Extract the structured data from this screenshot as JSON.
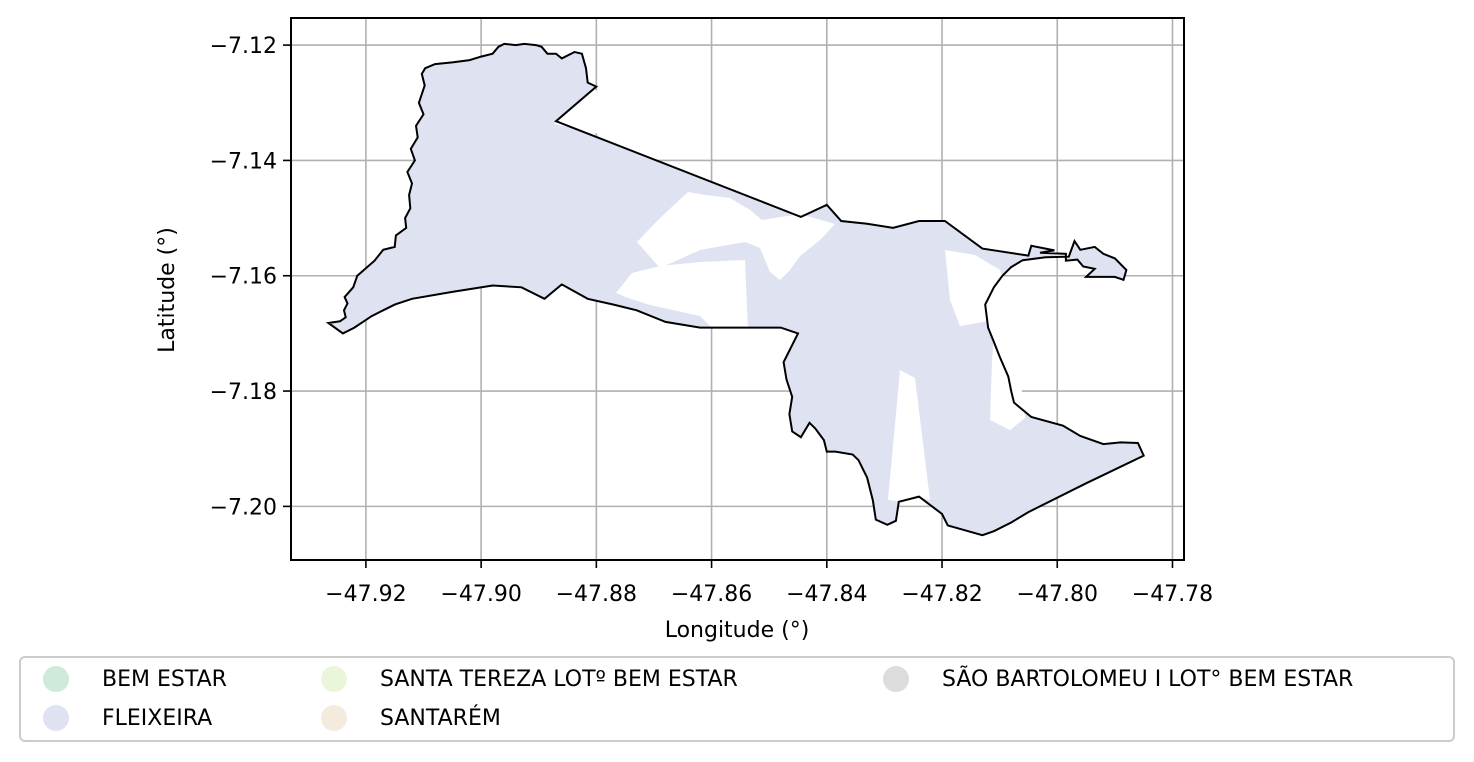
{
  "chart_data": {
    "type": "map",
    "title": "",
    "xlabel": "Longitude (°)",
    "ylabel": "Latitude (°)",
    "xlim": [
      -47.933,
      -47.778
    ],
    "ylim": [
      -7.2093,
      -7.1153
    ],
    "xticks": [
      -47.92,
      -47.9,
      -47.88,
      -47.86,
      -47.84,
      -47.82,
      -47.8,
      -47.78
    ],
    "xtick_labels": [
      "−47.92",
      "−47.90",
      "−47.88",
      "−47.86",
      "−47.84",
      "−47.82",
      "−47.80",
      "−47.78"
    ],
    "yticks": [
      -7.12,
      -7.14,
      -7.16,
      -7.18,
      -7.2
    ],
    "ytick_labels": [
      "−7.12",
      "−7.14",
      "−7.16",
      "−7.18",
      "−7.20"
    ],
    "grid": true,
    "legend_position": "bottom",
    "legend": [
      {
        "label": "BEM ESTAR",
        "color": "#cdeadb"
      },
      {
        "label": "FLEIXEIRA",
        "color": "#dfe3f1"
      },
      {
        "label": "SANTA TEREZA LOTº BEM ESTAR",
        "color": "#eaf6d9"
      },
      {
        "label": "SANTARÉM",
        "color": "#f5ebdc"
      },
      {
        "label": "SÃO BARTOLOMEU I LOT° BEM ESTAR",
        "color": "#dcdcdc"
      }
    ],
    "fill_color": "#dfe3f1",
    "boundary_color": "#000000",
    "boundary": [
      [
        -47.9265,
        -7.1682
      ],
      [
        -47.9245,
        -7.1679
      ],
      [
        -47.9235,
        -7.1672
      ],
      [
        -47.9238,
        -7.166
      ],
      [
        -47.9232,
        -7.1648
      ],
      [
        -47.9237,
        -7.1637
      ],
      [
        -47.9222,
        -7.162
      ],
      [
        -47.9215,
        -7.16
      ],
      [
        -47.92,
        -7.1587
      ],
      [
        -47.9185,
        -7.1574
      ],
      [
        -47.917,
        -7.1555
      ],
      [
        -47.915,
        -7.155
      ],
      [
        -47.9148,
        -7.153
      ],
      [
        -47.913,
        -7.1517
      ],
      [
        -47.9132,
        -7.15
      ],
      [
        -47.9123,
        -7.1483
      ],
      [
        -47.9125,
        -7.146
      ],
      [
        -47.912,
        -7.144
      ],
      [
        -47.9128,
        -7.142
      ],
      [
        -47.9115,
        -7.14
      ],
      [
        -47.9122,
        -7.138
      ],
      [
        -47.911,
        -7.136
      ],
      [
        -47.9113,
        -7.134
      ],
      [
        -47.91,
        -7.132
      ],
      [
        -47.9108,
        -7.13
      ],
      [
        -47.9098,
        -7.127
      ],
      [
        -47.9103,
        -7.125
      ],
      [
        -47.9097,
        -7.124
      ],
      [
        -47.908,
        -7.1233
      ],
      [
        -47.905,
        -7.123
      ],
      [
        -47.902,
        -7.1226
      ],
      [
        -47.9,
        -7.122
      ],
      [
        -47.898,
        -7.1215
      ],
      [
        -47.897,
        -7.1203
      ],
      [
        -47.896,
        -7.1198
      ],
      [
        -47.894,
        -7.12
      ],
      [
        -47.8925,
        -7.1198
      ],
      [
        -47.8905,
        -7.12
      ],
      [
        -47.8895,
        -7.1203
      ],
      [
        -47.8885,
        -7.1215
      ],
      [
        -47.887,
        -7.1215
      ],
      [
        -47.886,
        -7.1223
      ],
      [
        -47.8838,
        -7.1212
      ],
      [
        -47.8825,
        -7.1215
      ],
      [
        -47.8818,
        -7.124
      ],
      [
        -47.8815,
        -7.1265
      ],
      [
        -47.88,
        -7.1272
      ],
      [
        -47.887,
        -7.1332
      ],
      [
        -47.8445,
        -7.1498
      ],
      [
        -47.84,
        -7.1477
      ],
      [
        -47.8375,
        -7.1505
      ],
      [
        -47.833,
        -7.151
      ],
      [
        -47.8285,
        -7.1517
      ],
      [
        -47.824,
        -7.1505
      ],
      [
        -47.8195,
        -7.1505
      ],
      [
        -47.813,
        -7.1553
      ],
      [
        -47.805,
        -7.1565
      ],
      [
        -47.8045,
        -7.1548
      ],
      [
        -47.8005,
        -7.1556
      ],
      [
        -47.803,
        -7.156
      ],
      [
        -47.7985,
        -7.1562
      ],
      [
        -47.7985,
        -7.1574
      ],
      [
        -47.7965,
        -7.1572
      ],
      [
        -47.7955,
        -7.1584
      ],
      [
        -47.7935,
        -7.1588
      ],
      [
        -47.795,
        -7.1602
      ],
      [
        -47.79,
        -7.1602
      ],
      [
        -47.7885,
        -7.1607
      ],
      [
        -47.788,
        -7.159
      ],
      [
        -47.79,
        -7.157
      ],
      [
        -47.792,
        -7.1562
      ],
      [
        -47.7935,
        -7.155
      ],
      [
        -47.796,
        -7.1555
      ],
      [
        -47.797,
        -7.154
      ],
      [
        -47.798,
        -7.1567
      ],
      [
        -47.802,
        -7.1568
      ],
      [
        -47.806,
        -7.1573
      ],
      [
        -47.808,
        -7.1585
      ],
      [
        -47.8095,
        -7.16
      ],
      [
        -47.811,
        -7.162
      ],
      [
        -47.8125,
        -7.165
      ],
      [
        -47.812,
        -7.169
      ],
      [
        -47.811,
        -7.1715
      ],
      [
        -47.81,
        -7.174
      ],
      [
        -47.8085,
        -7.1775
      ],
      [
        -47.808,
        -7.18
      ],
      [
        -47.8075,
        -7.182
      ],
      [
        -47.8045,
        -7.1845
      ],
      [
        -47.799,
        -7.186
      ],
      [
        -47.796,
        -7.1878
      ],
      [
        -47.792,
        -7.1892
      ],
      [
        -47.789,
        -7.1889
      ],
      [
        -47.786,
        -7.189
      ],
      [
        -47.785,
        -7.1912
      ],
      [
        -47.795,
        -7.196
      ],
      [
        -47.805,
        -7.201
      ],
      [
        -47.808,
        -7.2028
      ],
      [
        -47.811,
        -7.2043
      ],
      [
        -47.813,
        -7.205
      ],
      [
        -47.819,
        -7.2033
      ],
      [
        -47.82,
        -7.2013
      ],
      [
        -47.824,
        -7.1983
      ],
      [
        -47.8275,
        -7.1992
      ],
      [
        -47.828,
        -7.2025
      ],
      [
        -47.8295,
        -7.2032
      ],
      [
        -47.8315,
        -7.2023
      ],
      [
        -47.832,
        -7.199
      ],
      [
        -47.833,
        -7.195
      ],
      [
        -47.8345,
        -7.192
      ],
      [
        -47.8355,
        -7.191
      ],
      [
        -47.8385,
        -7.1905
      ],
      [
        -47.84,
        -7.1905
      ],
      [
        -47.8405,
        -7.1885
      ],
      [
        -47.842,
        -7.1865
      ],
      [
        -47.843,
        -7.1855
      ],
      [
        -47.8445,
        -7.188
      ],
      [
        -47.846,
        -7.187
      ],
      [
        -47.8465,
        -7.184
      ],
      [
        -47.846,
        -7.181
      ],
      [
        -47.847,
        -7.178
      ],
      [
        -47.8475,
        -7.175
      ],
      [
        -47.845,
        -7.17
      ],
      [
        -47.848,
        -7.169
      ],
      [
        -47.853,
        -7.169
      ],
      [
        -47.862,
        -7.169
      ],
      [
        -47.868,
        -7.168
      ],
      [
        -47.873,
        -7.166
      ],
      [
        -47.877,
        -7.165
      ],
      [
        -47.8815,
        -7.164
      ],
      [
        -47.886,
        -7.1615
      ],
      [
        -47.889,
        -7.164
      ],
      [
        -47.893,
        -7.162
      ],
      [
        -47.898,
        -7.1617
      ],
      [
        -47.905,
        -7.1628
      ],
      [
        -47.912,
        -7.164
      ],
      [
        -47.915,
        -7.165
      ],
      [
        -47.917,
        -7.166
      ],
      [
        -47.919,
        -7.167
      ],
      [
        -47.922,
        -7.169
      ],
      [
        -47.924,
        -7.17
      ],
      [
        -47.9265,
        -7.1682
      ]
    ]
  }
}
